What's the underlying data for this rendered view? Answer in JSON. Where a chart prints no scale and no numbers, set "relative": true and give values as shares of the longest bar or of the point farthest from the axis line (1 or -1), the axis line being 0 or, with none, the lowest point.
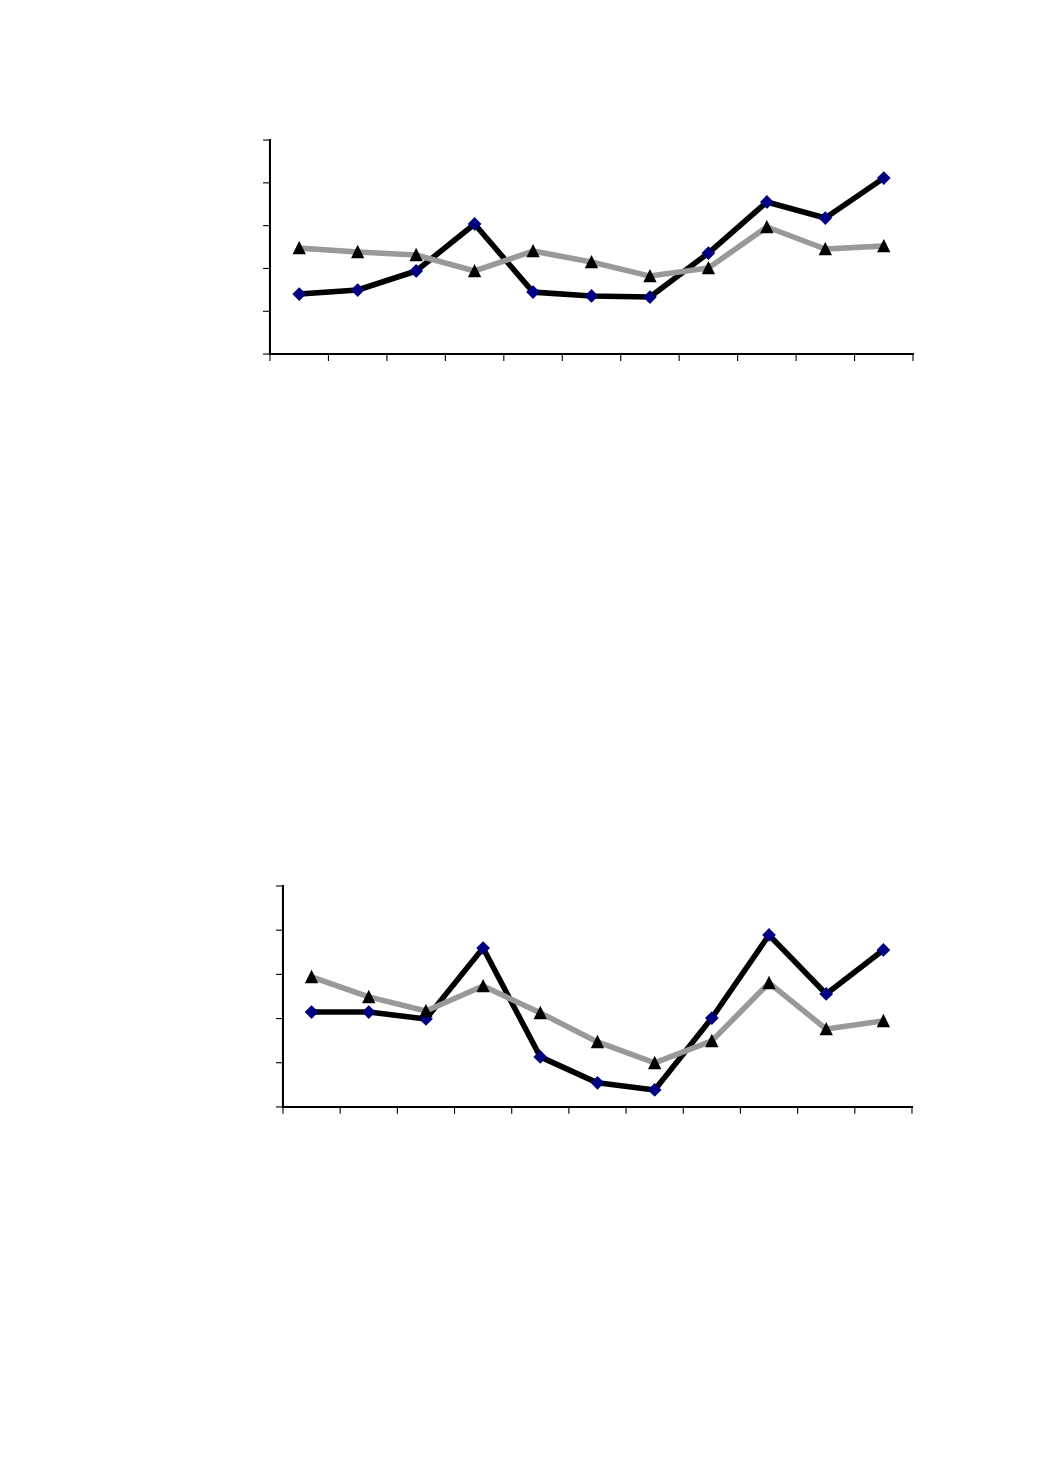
{
  "chart_data": [
    {
      "type": "line",
      "relative": true,
      "categories": [
        null,
        null,
        null,
        null,
        null,
        null,
        null,
        null,
        null,
        null,
        null
      ],
      "grid": false,
      "tick_labels": false,
      "series": [
        {
          "color": "#000000",
          "marker": "diamond",
          "line_style": "solid",
          "values": [
            0.341,
            0.364,
            0.472,
            0.739,
            0.352,
            0.33,
            0.324,
            0.574,
            0.864,
            0.773,
            1
          ]
        },
        {
          "color": "#999999",
          "marker": "triangle",
          "line_style": "solid",
          "values": [
            0.602,
            0.58,
            0.563,
            0.472,
            0.585,
            0.523,
            0.443,
            0.489,
            0.722,
            0.597,
            0.614
          ]
        }
      ]
    },
    {
      "type": "line",
      "relative": true,
      "categories": [
        null,
        null,
        null,
        null,
        null,
        null,
        null,
        null,
        null,
        null,
        null
      ],
      "grid": false,
      "tick_labels": false,
      "series": [
        {
          "color": "#000000",
          "marker": "diamond",
          "line_style": "solid",
          "values": [
            0.552,
            0.552,
            0.512,
            0.924,
            0.291,
            0.14,
            0.099,
            0.517,
            1,
            0.657,
            0.913
          ]
        },
        {
          "color": "#999999",
          "marker": "triangle",
          "line_style": "solid",
          "values": [
            0.756,
            0.64,
            0.558,
            0.703,
            0.547,
            0.378,
            0.256,
            0.384,
            0.721,
            0.453,
            0.5
          ]
        }
      ]
    }
  ]
}
